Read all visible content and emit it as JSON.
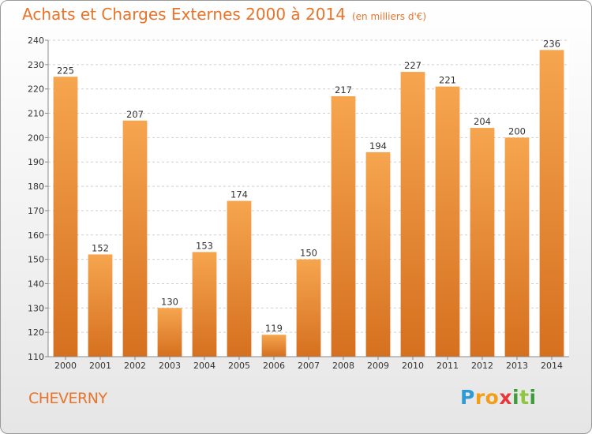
{
  "header": {
    "title": "Achats et Charges Externes 2000 à 2014",
    "unit": "(en milliers d'€)"
  },
  "footer": {
    "location": "CHEVERNY",
    "logo": {
      "letters": [
        "P",
        "r",
        "o",
        "x",
        "i",
        "t",
        "i"
      ],
      "colors": [
        "#2e9bd6",
        "#f29f17",
        "#f29f17",
        "#e8383d",
        "#3c9e3a",
        "#8dc63f",
        "#3c9e3a"
      ]
    }
  },
  "colors": {
    "accent": "#e8742a",
    "bar_light": "#f5a04d",
    "bar_dark": "#d9711e"
  },
  "chart_data": {
    "type": "bar",
    "title": "Achats et Charges Externes 2000 à 2014",
    "subtitle": "(en milliers d'€)",
    "categories": [
      "2000",
      "2001",
      "2002",
      "2003",
      "2004",
      "2005",
      "2006",
      "2007",
      "2008",
      "2009",
      "2010",
      "2011",
      "2012",
      "2013",
      "2014"
    ],
    "values": [
      225,
      152,
      207,
      130,
      153,
      174,
      119,
      150,
      217,
      194,
      227,
      221,
      204,
      200,
      236
    ],
    "ylim": [
      110,
      240
    ],
    "yticks": [
      110,
      120,
      130,
      140,
      150,
      160,
      170,
      180,
      190,
      200,
      210,
      220,
      230,
      240
    ],
    "grid": true
  }
}
